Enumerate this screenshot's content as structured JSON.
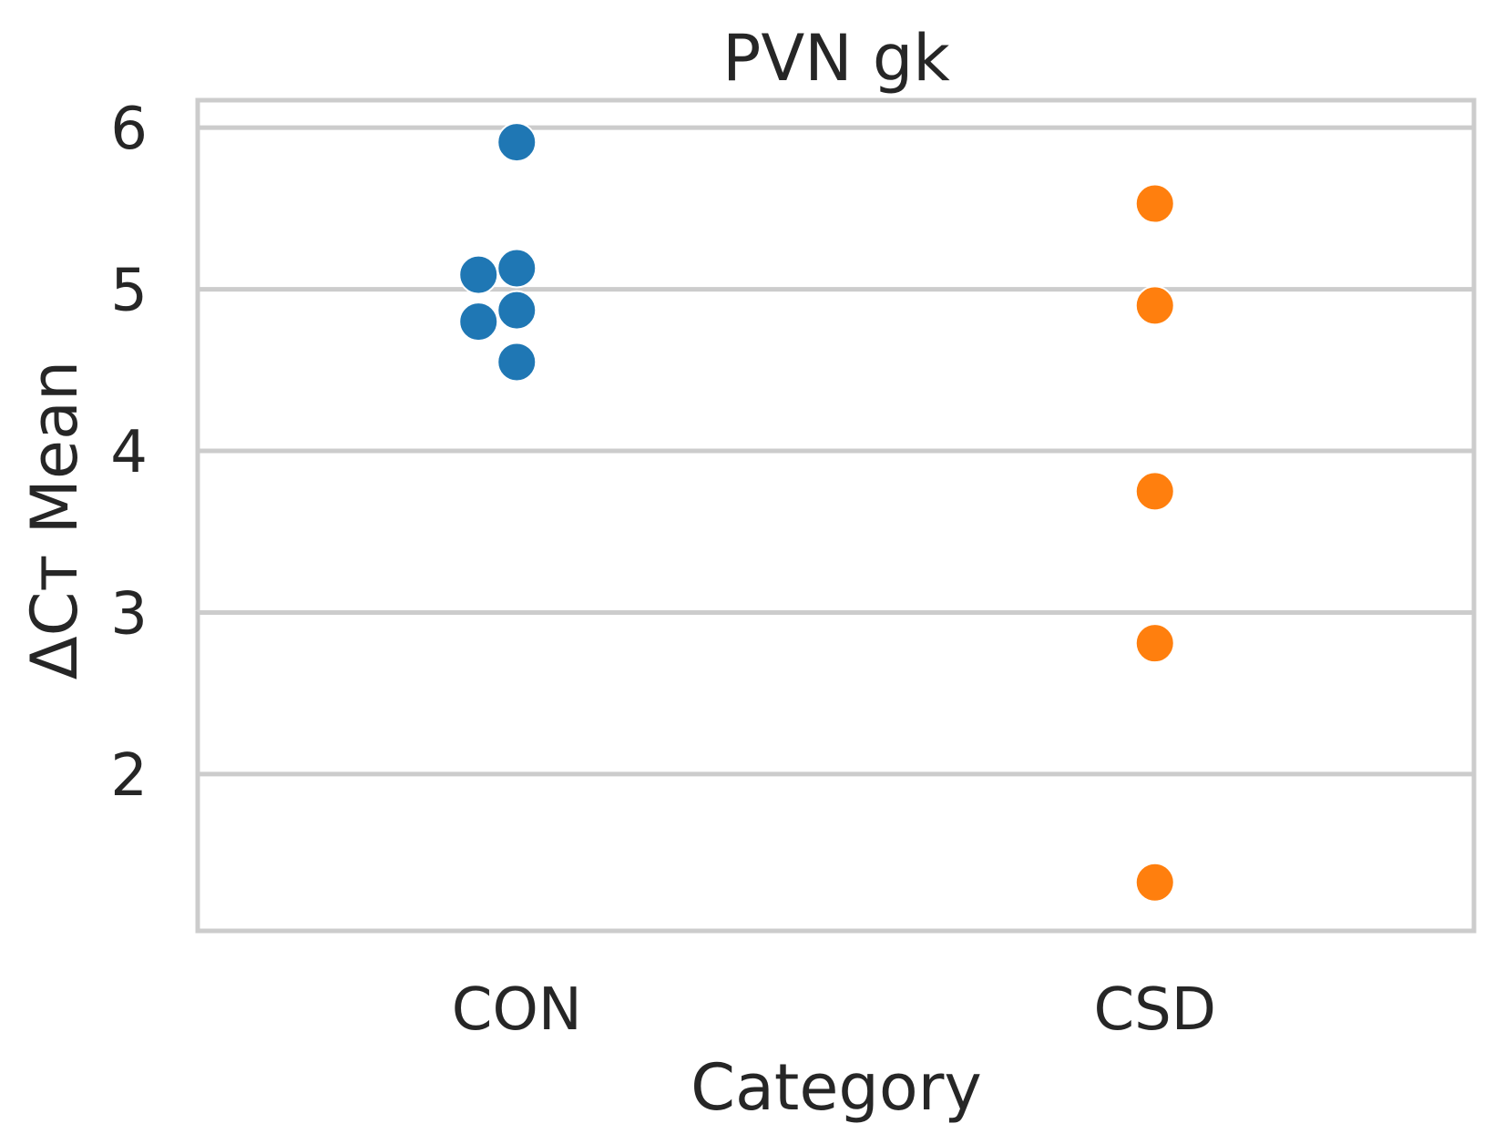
{
  "chart_data": {
    "type": "scatter",
    "title": "PVN gk",
    "xlabel": "Category",
    "ylabel": "ΔCт Mean",
    "categories": [
      "CON",
      "CSD"
    ],
    "ylim": [
      1.03,
      6.17
    ],
    "yticks": [
      2,
      3,
      4,
      5,
      6
    ],
    "grid": true,
    "series": [
      {
        "category": "CON",
        "color": "#1f77b4",
        "values": [
          5.91,
          5.13,
          5.09,
          4.87,
          4.8,
          4.55
        ]
      },
      {
        "category": "CSD",
        "color": "#ff7f0e",
        "values": [
          5.53,
          4.9,
          3.75,
          2.81,
          1.33
        ]
      }
    ]
  }
}
